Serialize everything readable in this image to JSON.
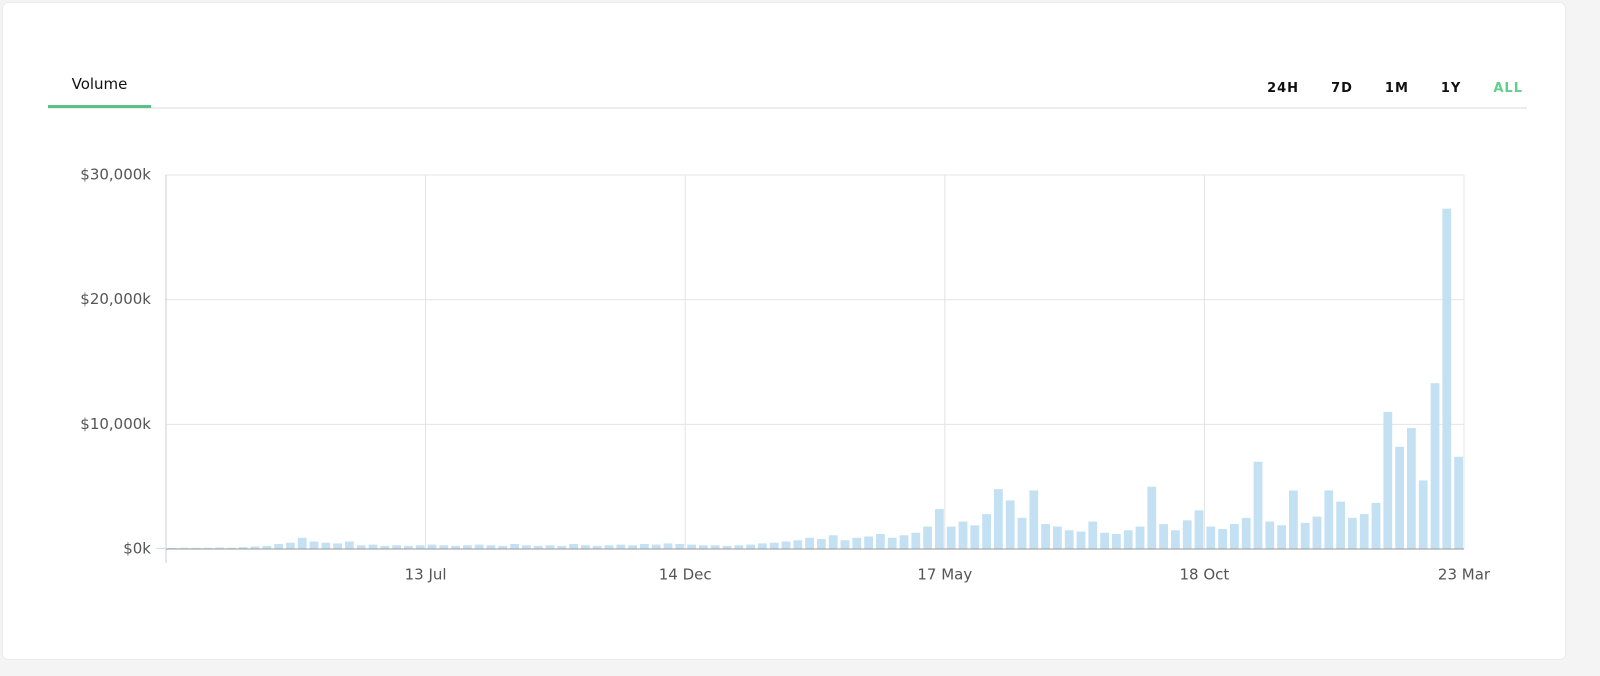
{
  "tabs": [
    "Volume"
  ],
  "ranges": [
    {
      "label": "24H",
      "active": false
    },
    {
      "label": "7D",
      "active": false
    },
    {
      "label": "1M",
      "active": false
    },
    {
      "label": "1Y",
      "active": false
    },
    {
      "label": "ALL",
      "active": true
    }
  ],
  "chart_data": {
    "type": "bar",
    "color": "#c3e1f3",
    "grid": true,
    "categories": [
      null,
      null,
      null,
      null,
      null,
      null,
      null,
      null,
      null,
      null,
      null,
      null,
      null,
      null,
      null,
      null,
      null,
      null,
      null,
      null,
      null,
      null,
      "13 Jul",
      null,
      null,
      null,
      null,
      null,
      null,
      null,
      null,
      null,
      null,
      null,
      null,
      null,
      null,
      null,
      null,
      null,
      null,
      null,
      null,
      null,
      "14 Dec",
      null,
      null,
      null,
      null,
      null,
      null,
      null,
      null,
      null,
      null,
      null,
      null,
      null,
      null,
      null,
      null,
      null,
      null,
      null,
      null,
      null,
      "17 May",
      null,
      null,
      null,
      null,
      null,
      null,
      null,
      null,
      null,
      null,
      null,
      null,
      null,
      null,
      null,
      null,
      null,
      null,
      null,
      null,
      null,
      "18 Oct",
      null,
      null,
      null,
      null,
      null,
      null,
      null,
      null,
      null,
      null,
      null,
      null,
      null,
      null,
      null,
      null,
      null,
      null,
      null,
      null,
      null,
      "23 Mar"
    ],
    "values": [
      80,
      80,
      100,
      90,
      100,
      120,
      100,
      150,
      200,
      250,
      400,
      500,
      900,
      600,
      500,
      450,
      600,
      300,
      350,
      250,
      300,
      250,
      300,
      350,
      300,
      250,
      300,
      350,
      300,
      250,
      400,
      300,
      250,
      300,
      250,
      400,
      300,
      250,
      300,
      350,
      300,
      400,
      350,
      450,
      400,
      350,
      300,
      300,
      250,
      300,
      350,
      450,
      500,
      600,
      700,
      900,
      800,
      1100,
      700,
      900,
      1000,
      1200,
      900,
      1100,
      1300,
      1800,
      3200,
      1800,
      2200,
      1900,
      2800,
      4800,
      3900,
      2500,
      4700,
      2000,
      1800,
      1500,
      1400,
      2200,
      1300,
      1200,
      1500,
      1800,
      5000,
      2000,
      1500,
      2300,
      3100,
      1800,
      1600,
      2000,
      2500,
      7000,
      2200,
      1900,
      4700,
      2100,
      2600,
      4700,
      3800,
      2500,
      2800,
      3700,
      11000,
      8200,
      9700,
      5500,
      13300,
      27300,
      7400
    ],
    "ylim": [
      0,
      30000
    ],
    "yticks": [
      {
        "value": 0,
        "label": "$0k"
      },
      {
        "value": 10000,
        "label": "$10,000k"
      },
      {
        "value": 20000,
        "label": "$20,000k"
      },
      {
        "value": 30000,
        "label": "$30,000k"
      }
    ]
  }
}
